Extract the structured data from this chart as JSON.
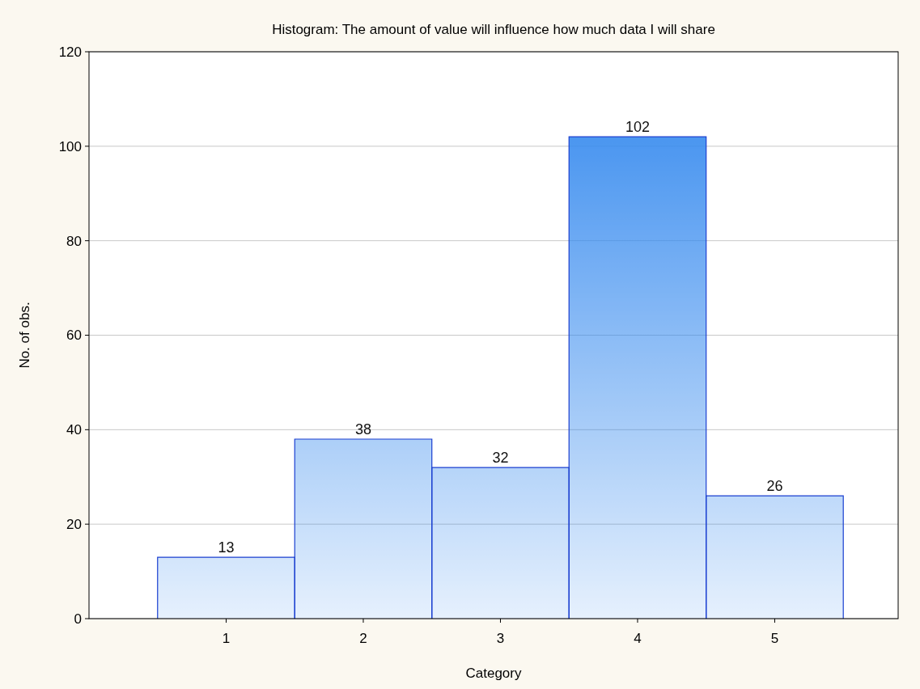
{
  "chart_data": {
    "type": "histogram",
    "title": "Histogram: The amount of value will influence how much data I will share",
    "xlabel": "Category",
    "ylabel": "No. of obs.",
    "bins": [
      0.5,
      1.5,
      2.5,
      3.5,
      4.5,
      5.5
    ],
    "values": [
      13,
      38,
      32,
      102,
      26
    ],
    "color": "#2f86ee",
    "xlim": [
      0,
      5.9
    ],
    "xticks": [
      1,
      2,
      3,
      4,
      5
    ],
    "ylim": [
      0,
      120
    ],
    "yticks": [
      0,
      20,
      40,
      60,
      80,
      100,
      120
    ],
    "grid": "y",
    "data_labels": true
  }
}
